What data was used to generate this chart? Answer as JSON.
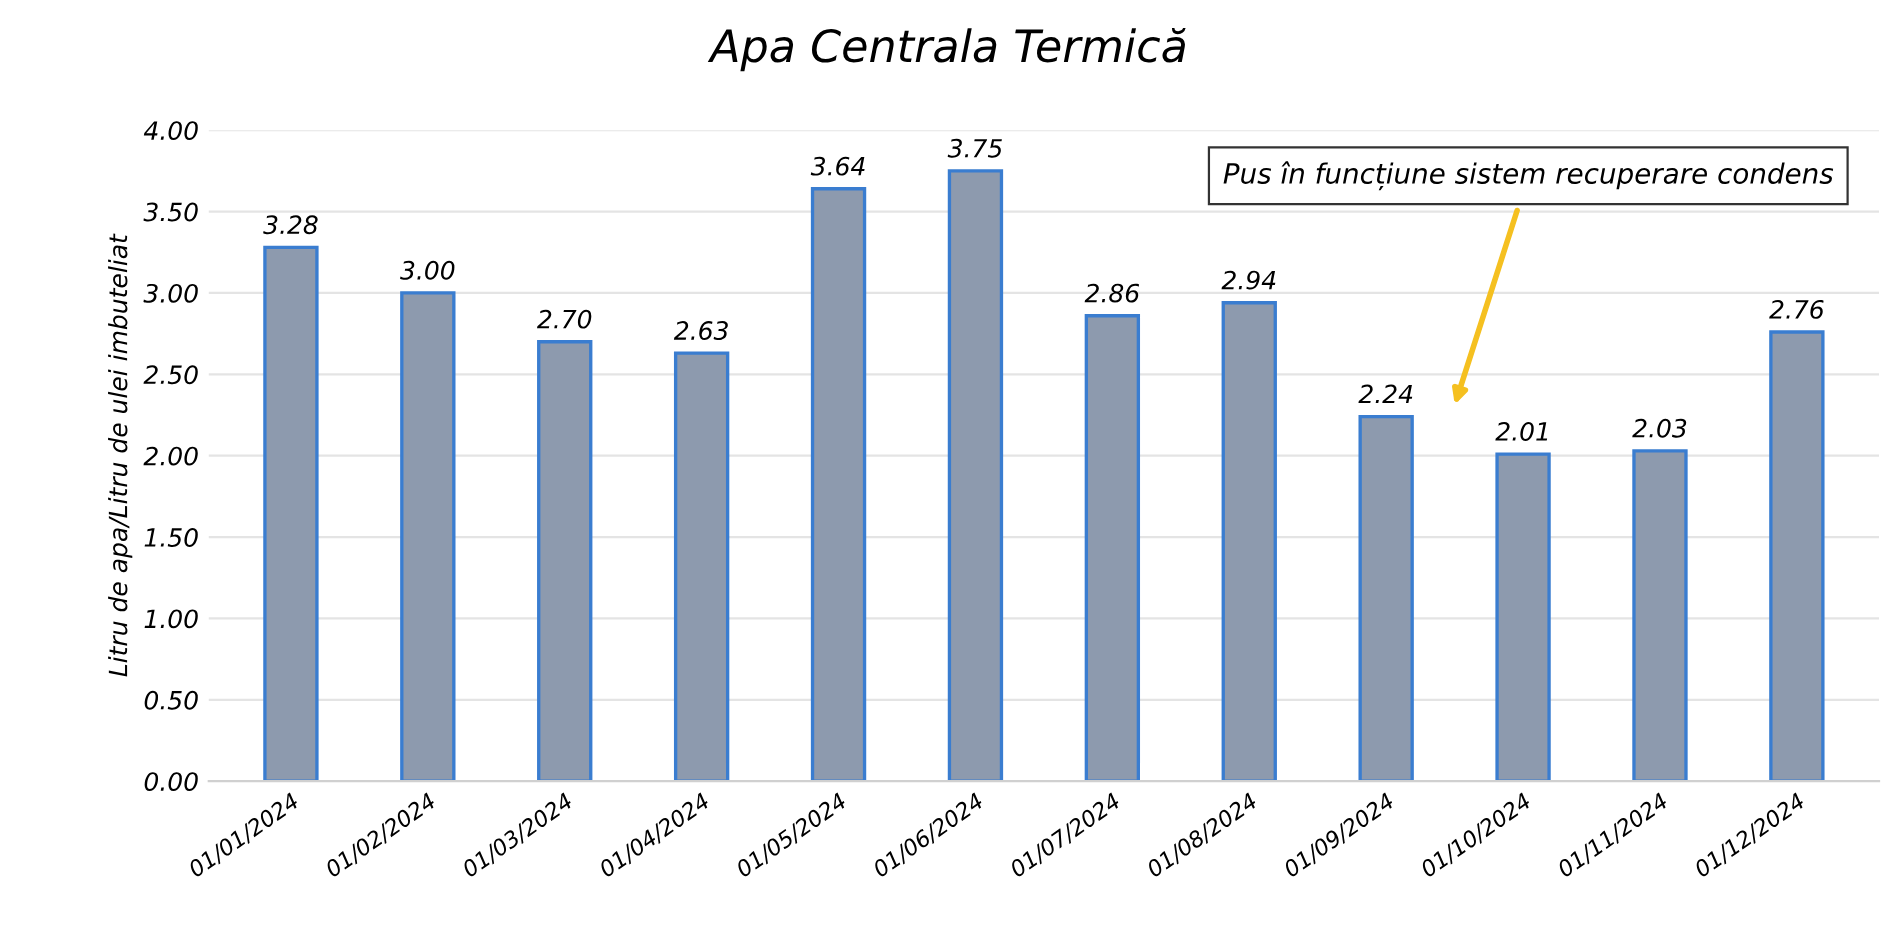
{
  "chart_data": {
    "type": "bar",
    "title": "Apa Centrala Termică",
    "ylabel": "Litru de apa/Litru de ulei imbuteliat",
    "categories": [
      "01/01/2024",
      "01/02/2024",
      "01/03/2024",
      "01/04/2024",
      "01/05/2024",
      "01/06/2024",
      "01/07/2024",
      "01/08/2024",
      "01/09/2024",
      "01/10/2024",
      "01/11/2024",
      "01/12/2024"
    ],
    "values": [
      3.28,
      3.0,
      2.7,
      2.63,
      3.64,
      3.75,
      2.86,
      2.94,
      2.24,
      2.01,
      2.03,
      2.76
    ],
    "value_labels": [
      "3.28",
      "3.00",
      "2.70",
      "2.63",
      "3.64",
      "3.75",
      "2.86",
      "2.94",
      "2.24",
      "2.01",
      "2.03",
      "2.76"
    ],
    "color": "#8d9aae",
    "ylim": [
      0,
      4
    ],
    "yticks": [
      {
        "value": 0,
        "label": "0.00"
      },
      {
        "value": 0.5,
        "label": "0.50"
      },
      {
        "value": 1,
        "label": "1.00"
      },
      {
        "value": 1.5,
        "label": "1.50"
      },
      {
        "value": 2,
        "label": "2.00"
      },
      {
        "value": 2.5,
        "label": "2.50"
      },
      {
        "value": 3,
        "label": "3.00"
      },
      {
        "value": 3.5,
        "label": "3.50"
      },
      {
        "value": 4,
        "label": "4.00"
      }
    ],
    "grid": "y",
    "annotations": [
      "Pus în funcțiune sistem recuperare condens"
    ]
  }
}
